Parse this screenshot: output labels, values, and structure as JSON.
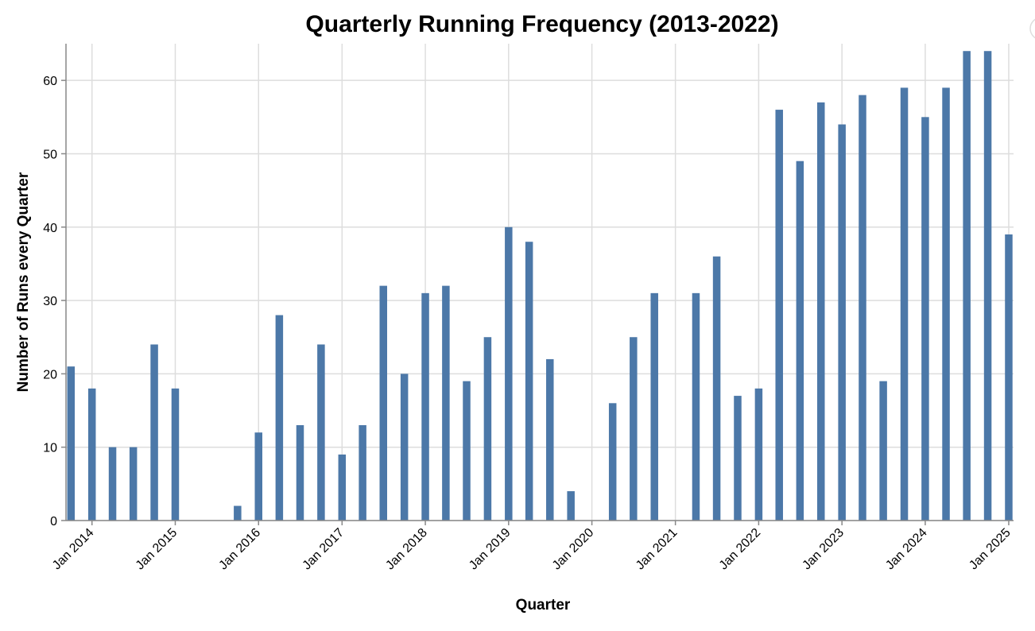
{
  "chart_data": {
    "type": "bar",
    "title": "Quarterly Running Frequency (2013-2022)",
    "xlabel": "Quarter",
    "ylabel": "Number of Runs every Quarter",
    "x_type": "date",
    "ylim": [
      0,
      65
    ],
    "y_ticks": [
      0,
      10,
      20,
      30,
      40,
      50,
      60
    ],
    "x_ticks": [
      "Jan 2014",
      "Jan 2015",
      "Jan 2016",
      "Jan 2017",
      "Jan 2018",
      "Jan 2019",
      "Jan 2020",
      "Jan 2021",
      "Jan 2022",
      "Jan 2023",
      "Jan 2024",
      "Jan 2025"
    ],
    "grid": true,
    "color": "#4c78a8",
    "x": [
      "2013-10-01",
      "2014-01-01",
      "2014-04-01",
      "2014-07-01",
      "2014-10-01",
      "2015-01-01",
      "2015-04-01",
      "2015-07-01",
      "2015-10-01",
      "2016-01-01",
      "2016-04-01",
      "2016-07-01",
      "2016-10-01",
      "2017-01-01",
      "2017-04-01",
      "2017-07-01",
      "2017-10-01",
      "2018-01-01",
      "2018-04-01",
      "2018-07-01",
      "2018-10-01",
      "2019-01-01",
      "2019-04-01",
      "2019-07-01",
      "2019-10-01",
      "2020-01-01",
      "2020-04-01",
      "2020-07-01",
      "2020-10-01",
      "2021-01-01",
      "2021-04-01",
      "2021-07-01",
      "2021-10-01",
      "2022-01-01",
      "2022-04-01",
      "2022-07-01",
      "2022-10-01",
      "2023-01-01",
      "2023-04-01",
      "2023-07-01",
      "2023-10-01",
      "2024-01-01",
      "2024-04-01",
      "2024-07-01",
      "2024-10-01",
      "2025-01-01"
    ],
    "values": [
      21,
      18,
      10,
      10,
      24,
      18,
      0,
      0,
      2,
      12,
      28,
      13,
      24,
      9,
      13,
      32,
      20,
      31,
      32,
      19,
      25,
      40,
      38,
      22,
      4,
      0,
      16,
      25,
      31,
      0,
      31,
      36,
      17,
      18,
      56,
      49,
      57,
      54,
      58,
      19,
      59,
      55,
      59,
      64,
      64,
      39
    ]
  }
}
